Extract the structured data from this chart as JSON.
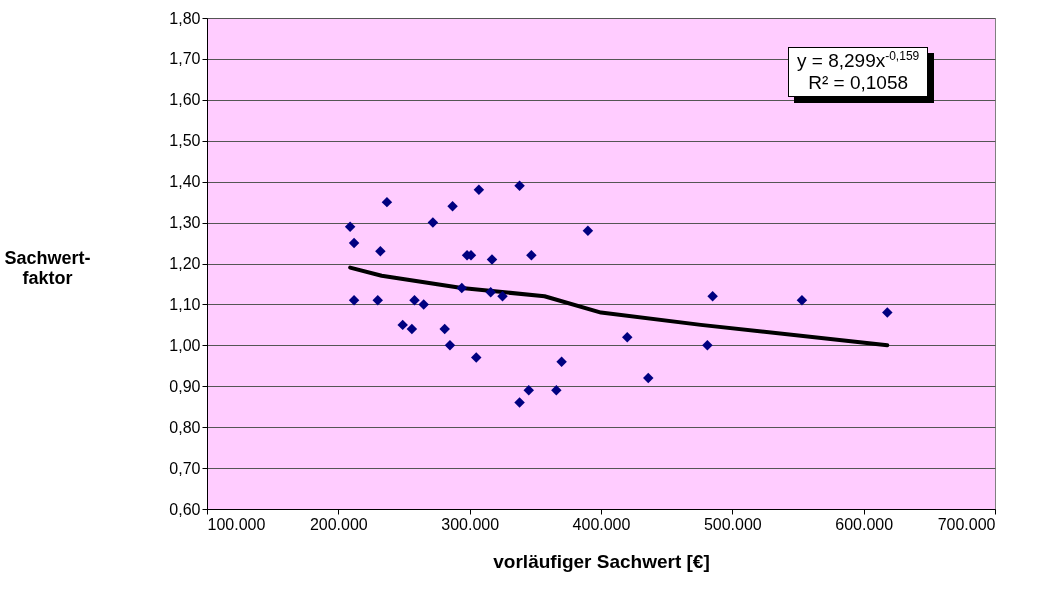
{
  "chart_data": {
    "type": "scatter",
    "xlabel": "vorläufiger Sachwert [€]",
    "ylabel": "Sachwert-faktor",
    "xlim": [
      100000,
      700000
    ],
    "xticks": [
      {
        "value": 100000,
        "label": "100.000"
      },
      {
        "value": 200000,
        "label": "200.000"
      },
      {
        "value": 300000,
        "label": "300.000"
      },
      {
        "value": 400000,
        "label": "400.000"
      },
      {
        "value": 500000,
        "label": "500.000"
      },
      {
        "value": 600000,
        "label": "600.000"
      },
      {
        "value": 700000,
        "label": "700.000"
      }
    ],
    "ylim": [
      0.6,
      1.8
    ],
    "yticks": [
      {
        "value": 0.6,
        "label": "0,60"
      },
      {
        "value": 0.7,
        "label": "0,70"
      },
      {
        "value": 0.8,
        "label": "0,80"
      },
      {
        "value": 0.9,
        "label": "0,90"
      },
      {
        "value": 1.0,
        "label": "1,00"
      },
      {
        "value": 1.1,
        "label": "1,10"
      },
      {
        "value": 1.2,
        "label": "1,20"
      },
      {
        "value": 1.3,
        "label": "1,30"
      },
      {
        "value": 1.4,
        "label": "1,40"
      },
      {
        "value": 1.5,
        "label": "1,50"
      },
      {
        "value": 1.6,
        "label": "1,60"
      },
      {
        "value": 1.7,
        "label": "1,70"
      },
      {
        "value": 1.8,
        "label": "1,80"
      }
    ],
    "grid": "y",
    "marker": "diamond",
    "annotations": [
      "y = 8,299x$^{-0,159}$",
      "R² = 0,1058"
    ],
    "series": [
      {
        "color": "#000080",
        "x": [
          209000,
          212000,
          232000,
          212000,
          230000,
          237000,
          307000,
          338000,
          287000,
          272000,
          390000,
          298000,
          301000,
          317000,
          347000,
          294000,
          316000,
          325000,
          258000,
          265000,
          249000,
          256000,
          281000,
          285000,
          305000,
          370000,
          366000,
          345000,
          338000,
          420000,
          436000,
          485000,
          481000,
          553000,
          618000
        ],
        "values": [
          1.29,
          1.25,
          1.23,
          1.11,
          1.11,
          1.35,
          1.38,
          1.39,
          1.34,
          1.3,
          1.28,
          1.22,
          1.22,
          1.21,
          1.22,
          1.14,
          1.13,
          1.12,
          1.11,
          1.1,
          1.05,
          1.04,
          1.04,
          1.0,
          0.97,
          0.96,
          0.89,
          0.89,
          0.86,
          1.02,
          0.92,
          1.12,
          1.0,
          1.11,
          1.08
        ]
      },
      {
        "type": "line",
        "color": "#000000",
        "marker": "none",
        "x": [
          209000,
          233000,
          294000,
          357000,
          400000,
          476000,
          618000
        ],
        "values": [
          1.19,
          1.17,
          1.14,
          1.12,
          1.08,
          1.05,
          1.0
        ]
      }
    ]
  }
}
